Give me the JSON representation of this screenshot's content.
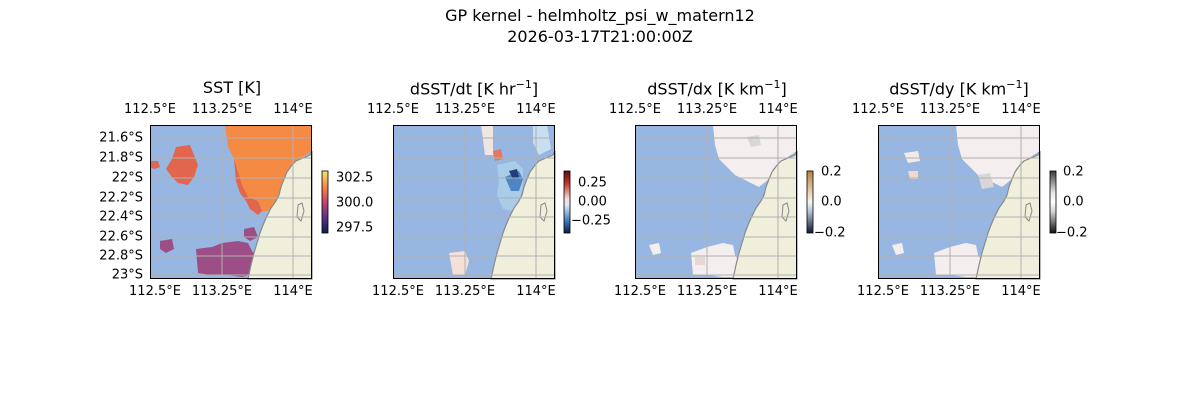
{
  "figure": {
    "title": "GP kernel - helmholtz_psi_w_matern12",
    "subtitle": "2026-03-17T21:00:00Z"
  },
  "colors": {
    "ocean": "#97b6e1",
    "land": "#efefdb",
    "coast": "#8a8a8a",
    "grid": "#b0b0b0",
    "sst_warm": "#f58a45",
    "sst_mid": "#e2654e",
    "sst_cool": "#9c4f86",
    "pale": "#f4efee"
  },
  "axes": {
    "lon_ticks": [
      "112.5°E",
      "113.25°E",
      "114°E"
    ],
    "lat_ticks": [
      "21.6°S",
      "21.8°S",
      "22°S",
      "22.2°S",
      "22.4°S",
      "22.6°S",
      "22.8°S",
      "23°S"
    ]
  },
  "panels": [
    {
      "id": "sst",
      "title": "SST [K]",
      "colorbar_ticks": [
        "302.5",
        "300.0",
        "297.5"
      ],
      "colormap": "thermal"
    },
    {
      "id": "dsst-dt",
      "title": "dSST/dt [K hr",
      "title_sup": "−1",
      "title_end": "]",
      "colorbar_ticks": [
        "0.25",
        "0.00",
        "−0.25"
      ],
      "colormap": "balance"
    },
    {
      "id": "dsst-dx",
      "title": "dSST/dx [K km",
      "title_sup": "−1",
      "title_end": "]",
      "colorbar_ticks": [
        "0.2",
        "0.0",
        "−0.2"
      ],
      "colormap": "diff"
    },
    {
      "id": "dsst-dy",
      "title": "dSST/dy [K km",
      "title_sup": "−1",
      "title_end": "]",
      "colorbar_ticks": [
        "0.2",
        "0.0",
        "−0.2"
      ],
      "colormap": "diff"
    }
  ]
}
